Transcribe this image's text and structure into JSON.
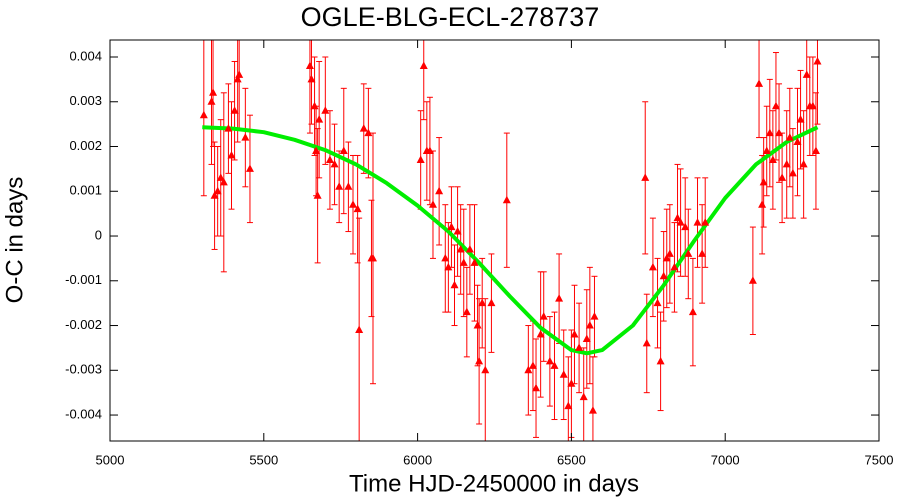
{
  "chart_data": {
    "type": "scatter",
    "title": "OGLE-BLG-ECL-278737",
    "x_label": "Time HJD-2450000 in days",
    "y_label": "O-C in days",
    "xlim": [
      5000,
      7500
    ],
    "ylim": [
      -0.00458,
      0.00438
    ],
    "xticks": [
      5000,
      5500,
      6000,
      6500,
      7000,
      7500
    ],
    "yticks": [
      -0.004,
      -0.003,
      -0.002,
      -0.001,
      0,
      0.001,
      0.002,
      0.003,
      0.004
    ],
    "points": {
      "color": "#ff0000",
      "x": [
        5305,
        5330,
        5335,
        5340,
        5350,
        5360,
        5370,
        5385,
        5395,
        5405,
        5415,
        5420,
        5440,
        5455,
        5650,
        5655,
        5665,
        5670,
        5675,
        5680,
        5700,
        5715,
        5730,
        5745,
        5760,
        5775,
        5790,
        5805,
        5810,
        5825,
        5840,
        5850,
        5855,
        6010,
        6020,
        6030,
        6040,
        6050,
        6070,
        6090,
        6100,
        6110,
        6120,
        6130,
        6140,
        6150,
        6160,
        6170,
        6185,
        6195,
        6200,
        6210,
        6220,
        6240,
        6290,
        6360,
        6375,
        6385,
        6400,
        6410,
        6430,
        6445,
        6460,
        6475,
        6490,
        6500,
        6510,
        6525,
        6540,
        6550,
        6560,
        6570,
        6575,
        6740,
        6745,
        6765,
        6780,
        6790,
        6800,
        6810,
        6820,
        6835,
        6845,
        6855,
        6870,
        6880,
        6895,
        6910,
        6925,
        6935,
        7090,
        7110,
        7120,
        7125,
        7135,
        7145,
        7155,
        7165,
        7175,
        7185,
        7200,
        7210,
        7220,
        7235,
        7245,
        7255,
        7265,
        7275,
        7285,
        7295,
        7300
      ],
      "values": [
        0.0027,
        0.003,
        0.0032,
        0.0009,
        0.001,
        0.0013,
        0.0012,
        0.0024,
        0.0018,
        0.0028,
        0.0035,
        0.0036,
        0.0022,
        0.0015,
        0.0038,
        0.0035,
        0.0029,
        0.0019,
        0.0009,
        0.0026,
        0.0028,
        0.0017,
        0.0016,
        0.0011,
        0.0019,
        0.0011,
        0.0007,
        0.0006,
        -0.0021,
        0.0024,
        0.0023,
        -0.0005,
        -0.0005,
        0.0017,
        0.0038,
        0.0019,
        0.0019,
        0.0007,
        0.001,
        -0.0005,
        -0.0007,
        0.0002,
        -0.0011,
        0.0001,
        -0.0003,
        -0.0006,
        -0.0017,
        -0.0003,
        -0.0006,
        -0.002,
        -0.0028,
        -0.0015,
        -0.003,
        -0.0015,
        0.0008,
        -0.003,
        -0.0029,
        -0.0034,
        -0.0022,
        -0.0018,
        -0.0028,
        -0.0029,
        -0.0014,
        -0.0031,
        -0.0038,
        -0.0033,
        -0.0022,
        -0.0025,
        -0.0036,
        -0.0023,
        -0.002,
        -0.0039,
        -0.0018,
        0.0013,
        -0.0024,
        -0.0007,
        -0.0015,
        -0.0028,
        -0.0009,
        -0.0005,
        -0.0004,
        -0.0007,
        0.0004,
        0.0003,
        0.0002,
        -0.0004,
        -0.0017,
        0.0003,
        -0.0004,
        0.0003,
        -0.001,
        0.0034,
        0.0007,
        0.0012,
        0.0019,
        0.0023,
        0.0017,
        0.0029,
        0.0023,
        0.0013,
        0.0016,
        0.0022,
        0.0014,
        0.0021,
        0.0026,
        0.0016,
        0.0036,
        0.0029,
        0.0029,
        0.0019,
        0.0039
      ],
      "errors": [
        0.0018,
        0.0014,
        0.0012,
        0.0012,
        0.001,
        0.0013,
        0.002,
        0.001,
        0.0012,
        0.0011,
        0.0014,
        0.0012,
        0.0011,
        0.0012,
        0.0015,
        0.001,
        0.0011,
        0.001,
        0.0015,
        0.0013,
        0.0012,
        0.0011,
        0.0009,
        0.0008,
        0.0014,
        0.001,
        0.0011,
        0.0012,
        0.0025,
        0.001,
        0.001,
        0.0013,
        0.0028,
        0.0011,
        0.0012,
        0.0011,
        0.0012,
        0.0012,
        0.0012,
        0.0012,
        0.001,
        0.0009,
        0.0009,
        0.001,
        0.001,
        0.0012,
        0.001,
        0.001,
        0.0013,
        0.0009,
        0.0014,
        0.001,
        0.0016,
        0.0011,
        0.0015,
        0.001,
        0.001,
        0.0011,
        0.0014,
        0.001,
        0.001,
        0.0012,
        0.001,
        0.001,
        0.0011,
        0.0012,
        0.0011,
        0.001,
        0.0011,
        0.0011,
        0.0013,
        0.0012,
        0.0009,
        0.0017,
        0.0011,
        0.0011,
        0.001,
        0.0011,
        0.001,
        0.0011,
        0.0011,
        0.001,
        0.0012,
        0.0012,
        0.0011,
        0.001,
        0.0012,
        0.001,
        0.0011,
        0.001,
        0.0012,
        0.0012,
        0.0011,
        0.001,
        0.001,
        0.0012,
        0.0011,
        0.0012,
        0.0011,
        0.001,
        0.0012,
        0.0011,
        0.001,
        0.0012,
        0.0011,
        0.0012,
        0.0013,
        0.0011,
        0.0011,
        0.0013,
        0.0014
      ]
    },
    "fit": {
      "color": "#00ee00",
      "x": [
        5300,
        5400,
        5500,
        5600,
        5700,
        5800,
        5900,
        6000,
        6100,
        6200,
        6300,
        6400,
        6500,
        6550,
        6600,
        6700,
        6800,
        6900,
        7000,
        7100,
        7200,
        7300
      ],
      "values": [
        0.00243,
        0.0024,
        0.00232,
        0.00215,
        0.00192,
        0.0016,
        0.00118,
        0.00068,
        0.0001,
        -0.0006,
        -0.00135,
        -0.00205,
        -0.00255,
        -0.00262,
        -0.00255,
        -0.002,
        -0.0011,
        -0.0001,
        0.00085,
        0.0016,
        0.0021,
        0.00243
      ]
    }
  }
}
